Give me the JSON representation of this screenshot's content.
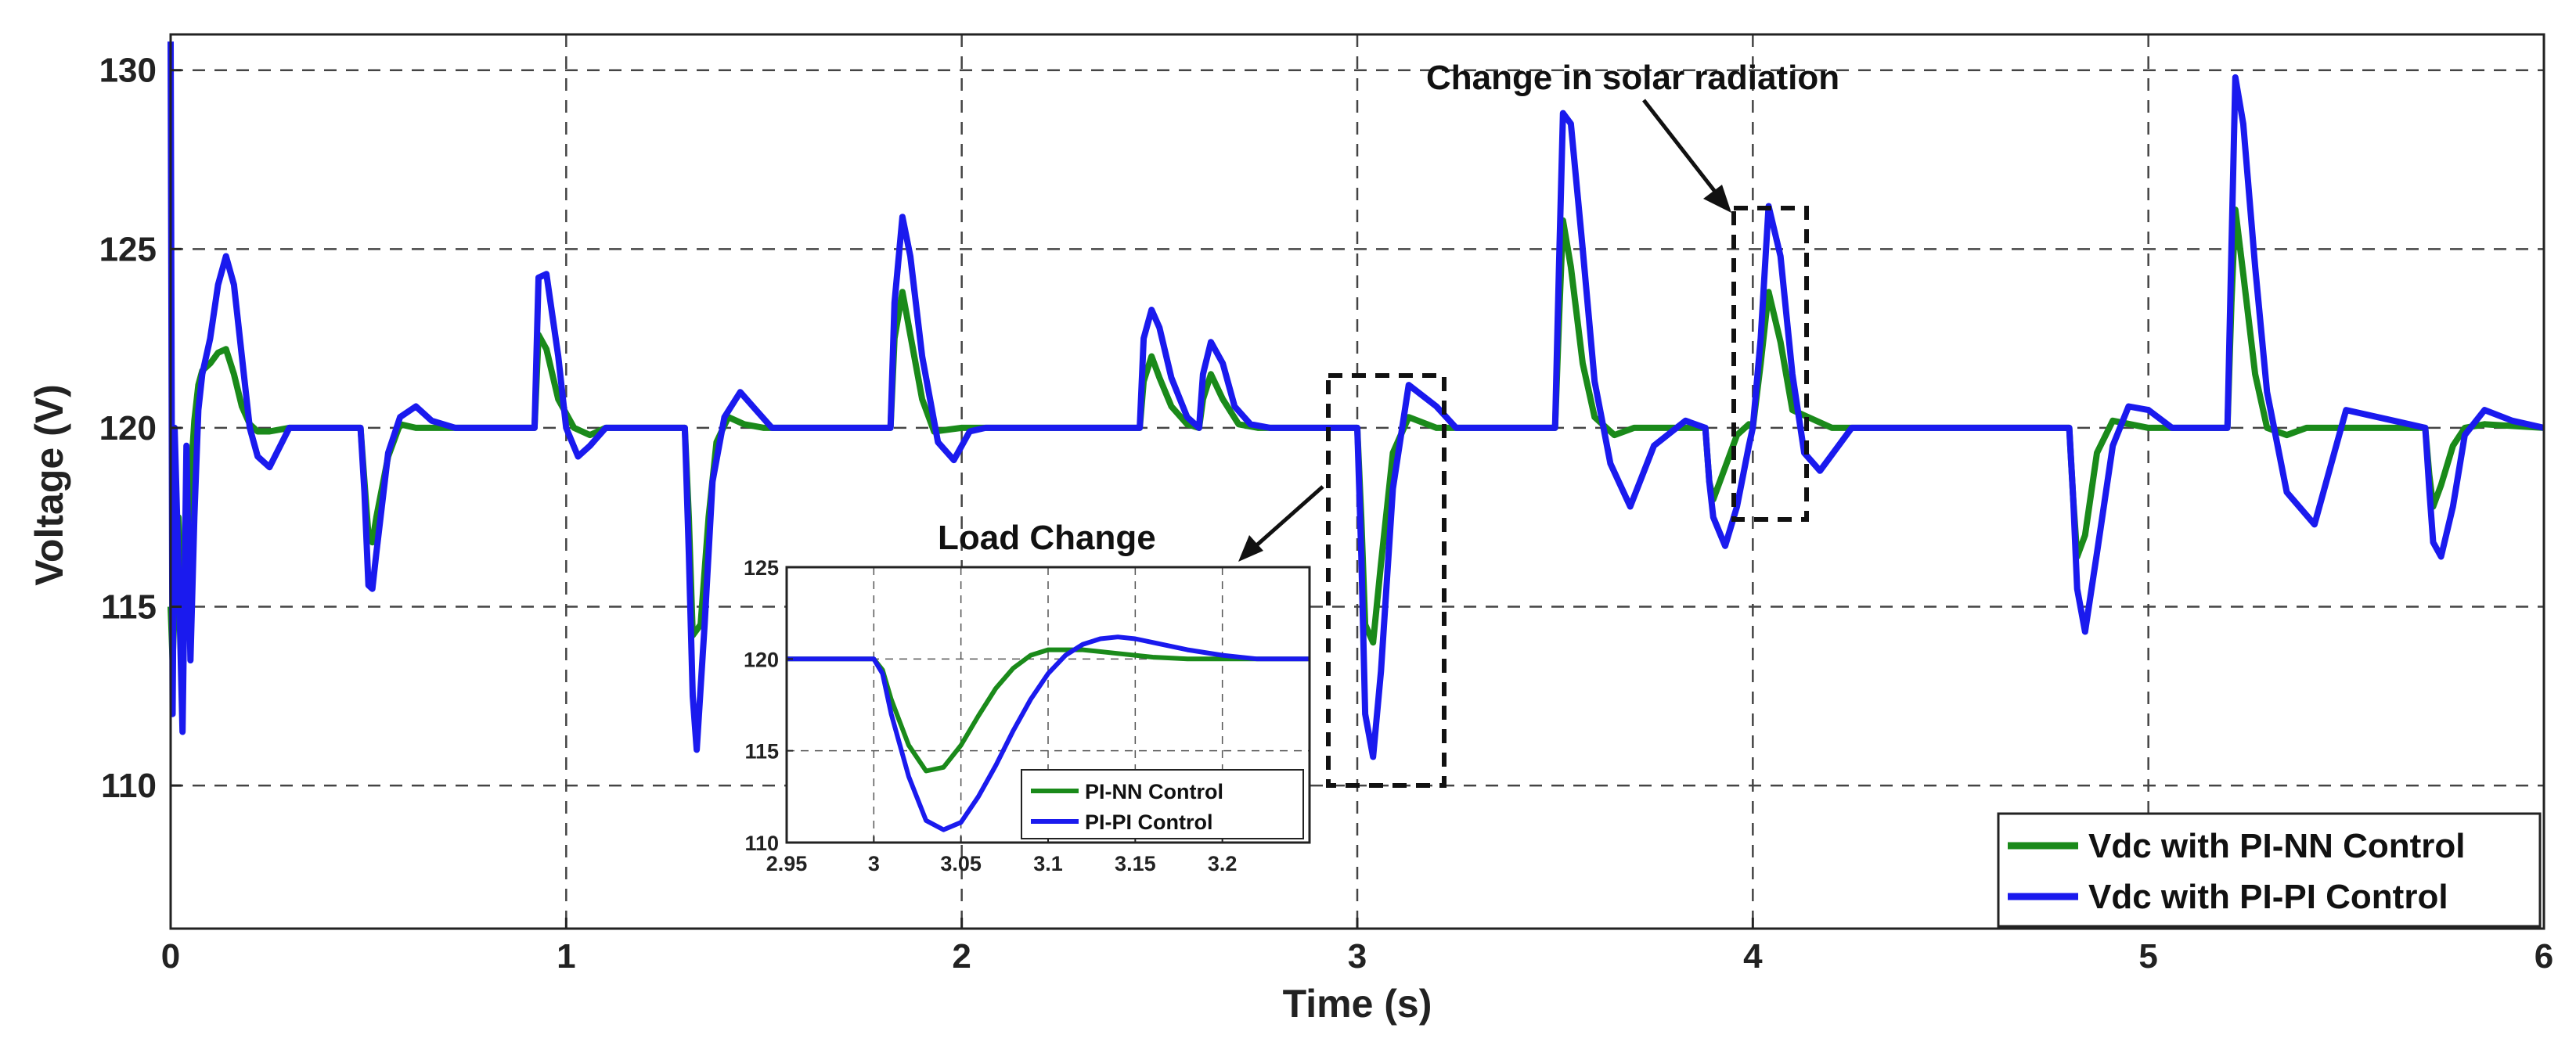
{
  "chart_data": {
    "type": "line",
    "xlabel": "Time (s)",
    "ylabel": "Voltage (V)",
    "xlim": [
      0,
      6
    ],
    "ylim": [
      106,
      131
    ],
    "xticks": [
      0,
      1,
      2,
      3,
      4,
      5,
      6
    ],
    "yticks": [
      110,
      115,
      120,
      125,
      130
    ],
    "grid": true,
    "legend_position": "bottom-right",
    "series": [
      {
        "name": "Vdc with PI-NN Control",
        "color": "#1a8a1a",
        "x": [
          0,
          0.005,
          0.01,
          0.02,
          0.03,
          0.04,
          0.05,
          0.06,
          0.07,
          0.08,
          0.1,
          0.12,
          0.14,
          0.16,
          0.18,
          0.2,
          0.22,
          0.25,
          0.3,
          0.48,
          0.49,
          0.5,
          0.51,
          0.52,
          0.55,
          0.58,
          0.62,
          0.92,
          0.93,
          0.95,
          0.98,
          1.02,
          1.06,
          1.1,
          1.3,
          1.31,
          1.32,
          1.34,
          1.36,
          1.38,
          1.41,
          1.45,
          1.5,
          1.82,
          1.83,
          1.85,
          1.87,
          1.9,
          1.93,
          2.0,
          2.45,
          2.46,
          2.48,
          2.5,
          2.53,
          2.57,
          2.6,
          2.61,
          2.63,
          2.66,
          2.7,
          2.75,
          3.0,
          3.01,
          3.02,
          3.04,
          3.06,
          3.09,
          3.13,
          3.2,
          3.5,
          3.51,
          3.52,
          3.54,
          3.57,
          3.6,
          3.65,
          3.7,
          3.88,
          3.89,
          3.9,
          3.93,
          3.96,
          3.99,
          4.0,
          4.02,
          4.04,
          4.07,
          4.1,
          4.2,
          4.8,
          4.81,
          4.82,
          4.84,
          4.87,
          4.91,
          5.0,
          5.2,
          5.21,
          5.22,
          5.24,
          5.27,
          5.3,
          5.35,
          5.4,
          5.7,
          5.71,
          5.72,
          5.74,
          5.77,
          5.8,
          5.85,
          6.0
        ],
        "values": [
          115,
          113.5,
          115,
          117.5,
          114.5,
          116.5,
          118.5,
          120.2,
          121.2,
          121.6,
          121.8,
          122.1,
          122.2,
          121.5,
          120.6,
          120.1,
          119.9,
          119.9,
          120,
          120,
          118.5,
          117,
          116.8,
          117.5,
          119.2,
          120.1,
          120,
          120,
          122.6,
          122.2,
          120.8,
          120,
          119.8,
          120,
          120,
          117.5,
          114.2,
          114.5,
          117.5,
          119.6,
          120.3,
          120.1,
          120,
          120,
          122.5,
          123.8,
          122.6,
          120.8,
          119.9,
          120,
          120,
          121.3,
          122,
          121.4,
          120.6,
          120.1,
          120,
          120.8,
          121.5,
          120.8,
          120.1,
          120,
          120,
          117.5,
          114.5,
          114,
          116.2,
          119.3,
          120.3,
          120,
          120,
          123,
          125.8,
          124.5,
          121.8,
          120.3,
          119.8,
          120,
          120,
          118.5,
          118,
          118.9,
          119.8,
          120.1,
          120,
          121.8,
          123.8,
          122.4,
          120.5,
          120,
          120,
          118,
          116.4,
          117,
          119.3,
          120.2,
          120,
          120,
          123.5,
          126.1,
          124.3,
          121.5,
          120,
          119.8,
          120,
          120,
          118.7,
          117.8,
          118.4,
          119.5,
          120,
          120.1,
          120
        ]
      },
      {
        "name": "Vdc with PI-PI Control",
        "color": "#1a1aee",
        "x": [
          0,
          0.005,
          0.01,
          0.02,
          0.03,
          0.04,
          0.05,
          0.06,
          0.07,
          0.08,
          0.1,
          0.12,
          0.14,
          0.16,
          0.18,
          0.2,
          0.22,
          0.25,
          0.3,
          0.35,
          0.4,
          0.48,
          0.49,
          0.5,
          0.51,
          0.52,
          0.55,
          0.58,
          0.62,
          0.66,
          0.72,
          0.92,
          0.93,
          0.95,
          0.98,
          1.0,
          1.03,
          1.06,
          1.1,
          1.3,
          1.31,
          1.32,
          1.33,
          1.35,
          1.37,
          1.4,
          1.44,
          1.48,
          1.52,
          1.82,
          1.83,
          1.85,
          1.87,
          1.9,
          1.94,
          1.98,
          2.02,
          2.06,
          2.45,
          2.46,
          2.48,
          2.5,
          2.53,
          2.57,
          2.6,
          2.61,
          2.63,
          2.66,
          2.69,
          2.73,
          2.78,
          3.0,
          3.01,
          3.02,
          3.04,
          3.06,
          3.09,
          3.13,
          3.2,
          3.25,
          3.5,
          3.51,
          3.52,
          3.54,
          3.57,
          3.6,
          3.64,
          3.69,
          3.75,
          3.83,
          3.88,
          3.89,
          3.9,
          3.93,
          3.96,
          3.99,
          4.0,
          4.02,
          4.04,
          4.07,
          4.1,
          4.13,
          4.17,
          4.25,
          4.8,
          4.81,
          4.82,
          4.84,
          4.87,
          4.91,
          4.95,
          5.0,
          5.06,
          5.2,
          5.21,
          5.22,
          5.24,
          5.27,
          5.3,
          5.35,
          5.42,
          5.5,
          5.7,
          5.71,
          5.72,
          5.74,
          5.77,
          5.8,
          5.85,
          5.92,
          6.0
        ],
        "values": [
          130.8,
          112,
          120,
          116,
          111.5,
          119.5,
          113.5,
          117.5,
          120.5,
          121.5,
          122.5,
          124,
          124.8,
          124,
          122,
          120,
          119.2,
          118.9,
          120,
          120,
          120,
          120,
          118.2,
          115.6,
          115.5,
          116.5,
          119.3,
          120.3,
          120.6,
          120.2,
          120,
          120,
          124.2,
          124.3,
          122,
          120,
          119.2,
          119.5,
          120,
          120,
          116.5,
          112.5,
          111,
          114.5,
          118.5,
          120.3,
          121,
          120.5,
          120,
          120,
          123.5,
          125.9,
          124.8,
          122,
          119.6,
          119.1,
          119.9,
          120,
          120,
          122.5,
          123.3,
          122.8,
          121.4,
          120.3,
          120,
          121.5,
          122.4,
          121.8,
          120.6,
          120.1,
          120,
          120,
          116.5,
          112,
          110.8,
          113.2,
          118.3,
          121.2,
          120.6,
          120,
          120,
          124.5,
          128.8,
          128.5,
          125,
          121.3,
          119,
          117.8,
          119.5,
          120.2,
          120,
          118.5,
          117.5,
          116.7,
          117.8,
          119.5,
          120,
          122.5,
          126.2,
          124.8,
          121.5,
          119.3,
          118.8,
          120,
          120,
          118,
          115.5,
          114.3,
          116.5,
          119.5,
          120.6,
          120.5,
          120,
          120,
          125,
          129.8,
          128.5,
          124.5,
          121,
          118.2,
          117.3,
          120.5,
          120,
          118.3,
          116.8,
          116.4,
          117.8,
          119.8,
          120.5,
          120.2,
          120
        ]
      }
    ],
    "legend": [
      "Vdc with PI-NN Control",
      "Vdc with PI-PI Control"
    ],
    "annotations": [
      "Change in solar radiation",
      "Load Change"
    ],
    "inset": {
      "xlim": [
        2.95,
        3.25
      ],
      "ylim": [
        110,
        125
      ],
      "xticks": [
        "2.95",
        "3",
        "3.05",
        "3.1",
        "3.15",
        "3.2"
      ],
      "xtick_values": [
        2.95,
        3.0,
        3.05,
        3.1,
        3.15,
        3.2
      ],
      "yticks": [
        110,
        115,
        120,
        125
      ],
      "legend": [
        "PI-NN Control",
        "PI-PI Control"
      ],
      "series": [
        {
          "name": "PI-NN Control",
          "color": "#1a8a1a",
          "x": [
            2.95,
            3.0,
            3.005,
            3.01,
            3.02,
            3.03,
            3.04,
            3.05,
            3.06,
            3.07,
            3.08,
            3.09,
            3.1,
            3.12,
            3.14,
            3.16,
            3.18,
            3.2,
            3.25
          ],
          "values": [
            120,
            120,
            119.4,
            117.8,
            115.3,
            113.9,
            114.1,
            115.3,
            116.9,
            118.4,
            119.5,
            120.2,
            120.5,
            120.5,
            120.3,
            120.1,
            120,
            120,
            120
          ]
        },
        {
          "name": "PI-PI Control",
          "color": "#1a1aee",
          "x": [
            2.95,
            3.0,
            3.005,
            3.01,
            3.02,
            3.03,
            3.04,
            3.05,
            3.06,
            3.07,
            3.08,
            3.09,
            3.1,
            3.11,
            3.12,
            3.13,
            3.14,
            3.15,
            3.16,
            3.18,
            3.2,
            3.22,
            3.25
          ],
          "values": [
            120,
            120,
            119.2,
            117,
            113.6,
            111.2,
            110.7,
            111.1,
            112.5,
            114.2,
            116.1,
            117.8,
            119.2,
            120.2,
            120.8,
            121.1,
            121.2,
            121.1,
            120.9,
            120.5,
            120.2,
            120,
            120
          ]
        }
      ]
    }
  }
}
